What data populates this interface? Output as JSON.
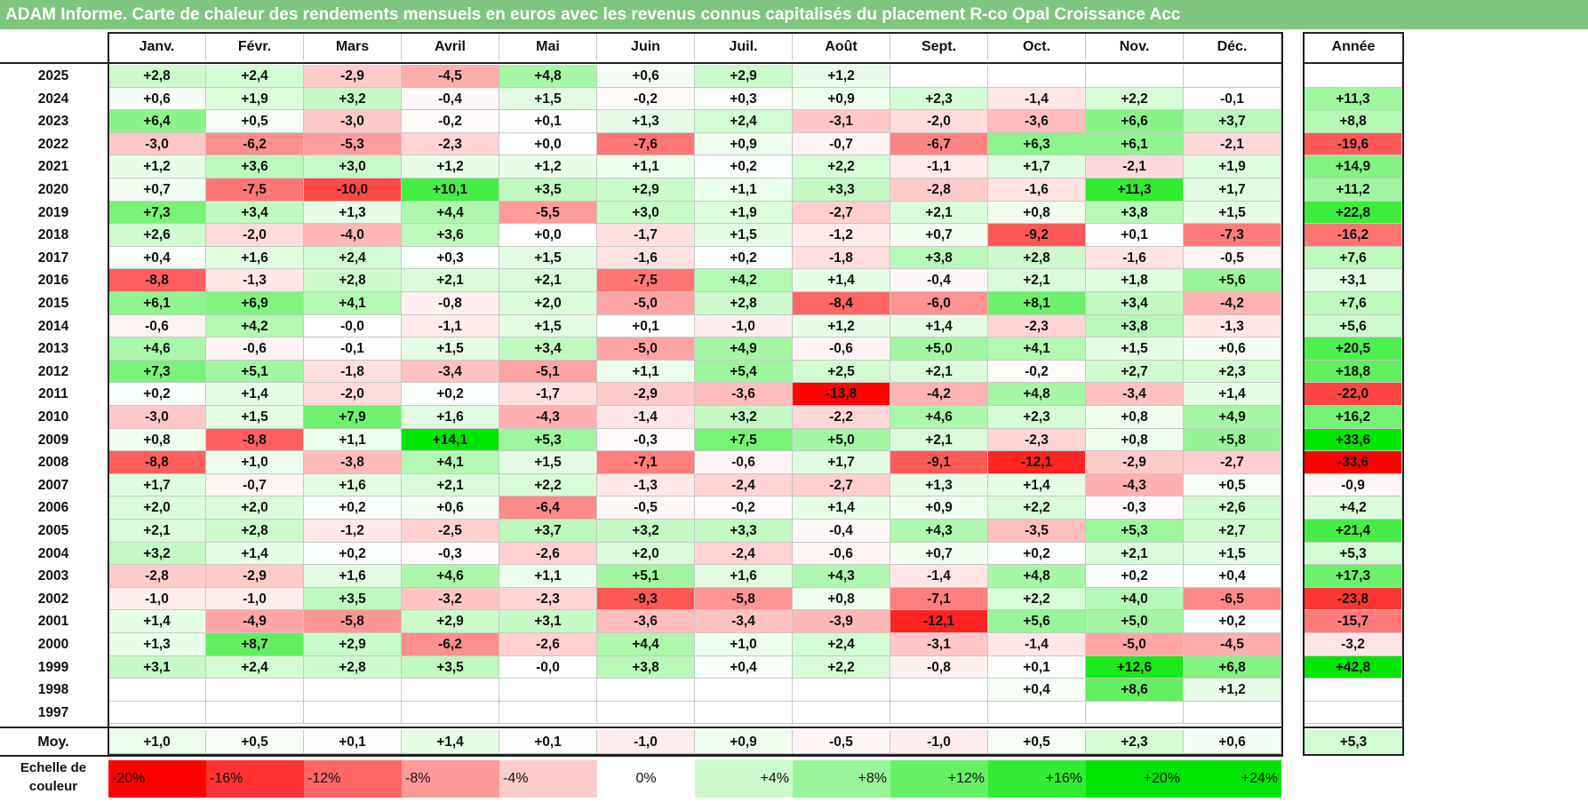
{
  "title": "ADAM Informe. Carte de chaleur des rendements mensuels en euros avec les revenus connus capitalisés du placement R-co Opal Croissance Acc",
  "chart_data": {
    "type": "heatmap",
    "title": "ADAM Informe. Carte de chaleur des rendements mensuels en euros avec les revenus connus capitalisés du placement R-co Opal Croissance Acc",
    "months": [
      "Janv.",
      "Févr.",
      "Mars",
      "Avril",
      "Mai",
      "Juin",
      "Juil.",
      "Août",
      "Sept.",
      "Oct.",
      "Nov.",
      "Déc."
    ],
    "annual_header": "Année",
    "rows": [
      {
        "year": "2025",
        "values": [
          "+2,8",
          "+2,4",
          "-2,9",
          "-4,5",
          "+4,8",
          "+0,6",
          "+2,9",
          "+1,2",
          "",
          "",
          "",
          ""
        ],
        "annual": ""
      },
      {
        "year": "2024",
        "values": [
          "+0,6",
          "+1,9",
          "+3,2",
          "-0,4",
          "+1,5",
          "-0,2",
          "+0,3",
          "+0,9",
          "+2,3",
          "-1,4",
          "+2,2",
          "-0,1"
        ],
        "annual": "+11,3"
      },
      {
        "year": "2023",
        "values": [
          "+6,4",
          "+0,5",
          "-3,0",
          "-0,2",
          "+0,1",
          "+1,3",
          "+2,4",
          "-3,1",
          "-2,0",
          "-3,6",
          "+6,6",
          "+3,7"
        ],
        "annual": "+8,8"
      },
      {
        "year": "2022",
        "values": [
          "-3,0",
          "-6,2",
          "-5,3",
          "-2,3",
          "+0,0",
          "-7,6",
          "+0,9",
          "-0,7",
          "-6,7",
          "+6,3",
          "+6,1",
          "-2,1"
        ],
        "annual": "-19,6"
      },
      {
        "year": "2021",
        "values": [
          "+1,2",
          "+3,6",
          "+3,0",
          "+1,2",
          "+1,2",
          "+1,1",
          "+0,2",
          "+2,2",
          "-1,1",
          "+1,7",
          "-2,1",
          "+1,9"
        ],
        "annual": "+14,9"
      },
      {
        "year": "2020",
        "values": [
          "+0,7",
          "-7,5",
          "-10,0",
          "+10,1",
          "+3,5",
          "+2,9",
          "+1,1",
          "+3,3",
          "-2,8",
          "-1,6",
          "+11,3",
          "+1,7"
        ],
        "annual": "+11,2"
      },
      {
        "year": "2019",
        "values": [
          "+7,3",
          "+3,4",
          "+1,3",
          "+4,4",
          "-5,5",
          "+3,0",
          "+1,9",
          "-2,7",
          "+2,1",
          "+0,8",
          "+3,8",
          "+1,5"
        ],
        "annual": "+22,8"
      },
      {
        "year": "2018",
        "values": [
          "+2,6",
          "-2,0",
          "-4,0",
          "+3,6",
          "+0,0",
          "-1,7",
          "+1,5",
          "-1,2",
          "+0,7",
          "-9,2",
          "+0,1",
          "-7,3"
        ],
        "annual": "-16,2"
      },
      {
        "year": "2017",
        "values": [
          "+0,4",
          "+1,6",
          "+2,4",
          "+0,3",
          "+1,5",
          "-1,6",
          "+0,2",
          "-1,8",
          "+3,8",
          "+2,8",
          "-1,6",
          "-0,5"
        ],
        "annual": "+7,6"
      },
      {
        "year": "2016",
        "values": [
          "-8,8",
          "-1,3",
          "+2,8",
          "+2,1",
          "+2,1",
          "-7,5",
          "+4,2",
          "+1,4",
          "-0,4",
          "+2,1",
          "+1,8",
          "+5,6"
        ],
        "annual": "+3,1"
      },
      {
        "year": "2015",
        "values": [
          "+6,1",
          "+6,9",
          "+4,1",
          "-0,8",
          "+2,0",
          "-5,0",
          "+2,8",
          "-8,4",
          "-6,0",
          "+8,1",
          "+3,4",
          "-4,2"
        ],
        "annual": "+7,6"
      },
      {
        "year": "2014",
        "values": [
          "-0,6",
          "+4,2",
          "-0,0",
          "-1,1",
          "+1,5",
          "+0,1",
          "-1,0",
          "+1,2",
          "+1,4",
          "-2,3",
          "+3,8",
          "-1,3"
        ],
        "annual": "+5,6"
      },
      {
        "year": "2013",
        "values": [
          "+4,6",
          "-0,6",
          "-0,1",
          "+1,5",
          "+3,4",
          "-5,0",
          "+4,9",
          "-0,6",
          "+5,0",
          "+4,1",
          "+1,5",
          "+0,6"
        ],
        "annual": "+20,5"
      },
      {
        "year": "2012",
        "values": [
          "+7,3",
          "+5,1",
          "-1,8",
          "-3,4",
          "-5,1",
          "+1,1",
          "+5,4",
          "+2,5",
          "+2,1",
          "-0,2",
          "+2,7",
          "+2,3"
        ],
        "annual": "+18,8"
      },
      {
        "year": "2011",
        "values": [
          "+0,2",
          "+1,4",
          "-2,0",
          "+0,2",
          "-1,7",
          "-2,9",
          "-3,6",
          "-13,8",
          "-4,2",
          "+4,8",
          "-3,4",
          "+1,4"
        ],
        "annual": "-22,0"
      },
      {
        "year": "2010",
        "values": [
          "-3,0",
          "+1,5",
          "+7,9",
          "+1,6",
          "-4,3",
          "-1,4",
          "+3,2",
          "-2,2",
          "+4,6",
          "+2,3",
          "+0,8",
          "+4,9"
        ],
        "annual": "+16,2"
      },
      {
        "year": "2009",
        "values": [
          "+0,8",
          "-8,8",
          "+1,1",
          "+14,1",
          "+5,3",
          "-0,3",
          "+7,5",
          "+5,0",
          "+2,1",
          "-2,3",
          "+0,8",
          "+5,8"
        ],
        "annual": "+33,6"
      },
      {
        "year": "2008",
        "values": [
          "-8,8",
          "+1,0",
          "-3,8",
          "+4,1",
          "+1,5",
          "-7,1",
          "-0,6",
          "+1,7",
          "-9,1",
          "-12,1",
          "-2,9",
          "-2,7"
        ],
        "annual": "-33,6"
      },
      {
        "year": "2007",
        "values": [
          "+1,7",
          "-0,7",
          "+1,6",
          "+2,1",
          "+2,2",
          "-1,3",
          "-2,4",
          "-2,7",
          "+1,3",
          "+1,4",
          "-4,3",
          "+0,5"
        ],
        "annual": "-0,9"
      },
      {
        "year": "2006",
        "values": [
          "+2,0",
          "+2,0",
          "+0,2",
          "+0,6",
          "-6,4",
          "-0,5",
          "-0,2",
          "+1,4",
          "+0,9",
          "+2,2",
          "-0,3",
          "+2,6"
        ],
        "annual": "+4,2"
      },
      {
        "year": "2005",
        "values": [
          "+2,1",
          "+2,8",
          "-1,2",
          "-2,5",
          "+3,7",
          "+3,2",
          "+3,3",
          "-0,4",
          "+4,3",
          "-3,5",
          "+5,3",
          "+2,7"
        ],
        "annual": "+21,4"
      },
      {
        "year": "2004",
        "values": [
          "+3,2",
          "+1,4",
          "+0,2",
          "-0,3",
          "-2,6",
          "+2,0",
          "-2,4",
          "-0,6",
          "+0,7",
          "+0,2",
          "+2,1",
          "+1,5"
        ],
        "annual": "+5,3"
      },
      {
        "year": "2003",
        "values": [
          "-2,8",
          "-2,9",
          "+1,6",
          "+4,6",
          "+1,1",
          "+5,1",
          "+1,6",
          "+4,3",
          "-1,4",
          "+4,8",
          "+0,2",
          "+0,4"
        ],
        "annual": "+17,3"
      },
      {
        "year": "2002",
        "values": [
          "-1,0",
          "-1,0",
          "+3,5",
          "-3,2",
          "-2,3",
          "-9,3",
          "-5,8",
          "+0,8",
          "-7,1",
          "+2,2",
          "+4,0",
          "-6,5"
        ],
        "annual": "-23,8"
      },
      {
        "year": "2001",
        "values": [
          "+1,4",
          "-4,9",
          "-5,8",
          "+2,9",
          "+3,1",
          "-3,6",
          "-3,4",
          "-3,9",
          "-12,1",
          "+5,6",
          "+5,0",
          "+0,2"
        ],
        "annual": "-15,7"
      },
      {
        "year": "2000",
        "values": [
          "+1,3",
          "+8,7",
          "+2,9",
          "-6,2",
          "-2,6",
          "+4,4",
          "+1,0",
          "+2,4",
          "-3,1",
          "-1,4",
          "-5,0",
          "-4,5"
        ],
        "annual": "-3,2"
      },
      {
        "year": "1999",
        "values": [
          "+3,1",
          "+2,4",
          "+2,8",
          "+3,5",
          "-0,0",
          "+3,8",
          "+0,4",
          "+2,2",
          "-0,8",
          "+0,1",
          "+12,6",
          "+6,8"
        ],
        "annual": "+42,8"
      },
      {
        "year": "1998",
        "values": [
          "",
          "",
          "",
          "",
          "",
          "",
          "",
          "",
          "",
          "+0,4",
          "+8,6",
          "+1,2"
        ],
        "annual": ""
      },
      {
        "year": "1997",
        "values": [
          "",
          "",
          "",
          "",
          "",
          "",
          "",
          "",
          "",
          "",
          "",
          ""
        ],
        "annual": ""
      }
    ],
    "average_row": {
      "label": "Moy.",
      "values": [
        "+1,0",
        "+0,5",
        "+0,1",
        "+1,4",
        "+0,1",
        "-1,0",
        "+0,9",
        "-0,5",
        "-1,0",
        "+0,5",
        "+2,3",
        "+0,6"
      ],
      "annual": "+5,3"
    },
    "color_scale": {
      "label": "Echelle de couleur",
      "stops": [
        "-20%",
        "-16%",
        "-12%",
        "-8%",
        "-4%",
        "0%",
        "+4%",
        "+8%",
        "+12%",
        "+16%",
        "+20%",
        "+24%"
      ],
      "stop_values": [
        -20,
        -16,
        -12,
        -8,
        -4,
        0,
        4,
        8,
        12,
        16,
        20,
        24
      ],
      "negative_color": "#ff0000",
      "zero_color": "#ffffff",
      "positive_color": "#00e600",
      "monthly_max_magnitude": 14,
      "annual_max_magnitude": 30
    }
  }
}
